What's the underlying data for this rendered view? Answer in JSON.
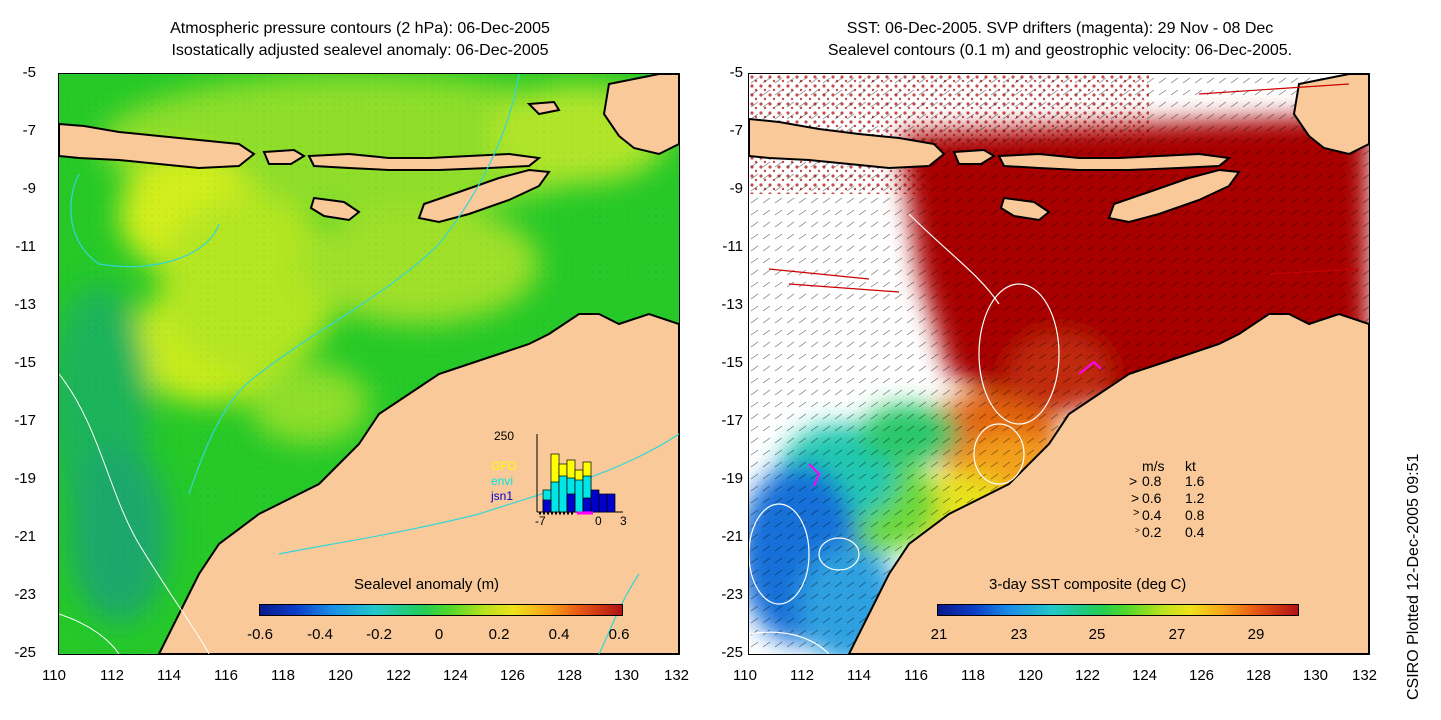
{
  "left_panel": {
    "title_line1": "Atmospheric pressure contours (2 hPa): 06-Dec-2005",
    "title_line2": "Isostatically adjusted sealevel anomaly: 06-Dec-2005",
    "y_ticks": [
      "-5",
      "-7",
      "-9",
      "-11",
      "-13",
      "-15",
      "-17",
      "-19",
      "-21",
      "-23",
      "-25"
    ],
    "x_ticks": [
      "110",
      "112",
      "114",
      "116",
      "118",
      "120",
      "122",
      "124",
      "126",
      "128",
      "130",
      "132"
    ],
    "colorbar": {
      "title": "Sealevel anomaly (m)",
      "labels": [
        "-0.6",
        "-0.4",
        "-0.2",
        "0",
        "0.2",
        "0.4",
        "0.6"
      ]
    },
    "inset": {
      "ymax_label": "250",
      "legend": [
        {
          "name": "GFO",
          "color": "#ffff00"
        },
        {
          "name": "envi",
          "color": "#00e5e5"
        },
        {
          "name": "jsn1",
          "color": "#0000cc"
        }
      ],
      "x_labels": [
        "-7",
        "0",
        "3"
      ]
    }
  },
  "right_panel": {
    "title_line1": "SST: 06-Dec-2005. SVP drifters (magenta): 29 Nov - 08 Dec",
    "title_line2": "Sealevel contours (0.1 m) and geostrophic velocity: 06-Dec-2005.",
    "y_ticks": [
      "-5",
      "-7",
      "-9",
      "-11",
      "-13",
      "-15",
      "-17",
      "-19",
      "-21",
      "-23",
      "-25"
    ],
    "x_ticks": [
      "110",
      "112",
      "114",
      "116",
      "118",
      "120",
      "122",
      "124",
      "126",
      "128",
      "130",
      "132"
    ],
    "colorbar": {
      "title": "3-day SST composite (deg C)",
      "labels": [
        "21",
        "23",
        "25",
        "27",
        "29"
      ]
    },
    "velocity_key": {
      "header": [
        "m/s",
        "kt"
      ],
      "rows": [
        [
          "0.8",
          "1.6"
        ],
        [
          "0.6",
          "1.2"
        ],
        [
          "0.4",
          "0.8"
        ],
        [
          "0.2",
          "0.4"
        ]
      ]
    }
  },
  "credit": "CSIRO Plotted 12-Dec-2005 09:51",
  "colors": {
    "land": "#f9c99a",
    "ocean_green": "#22cc22",
    "ocean_yellowgreen": "#a8e62a",
    "sst_red": "#aa0000",
    "sst_blue": "#0f55c8",
    "drifter": "#ff00ff",
    "contour": "#33cccc"
  }
}
